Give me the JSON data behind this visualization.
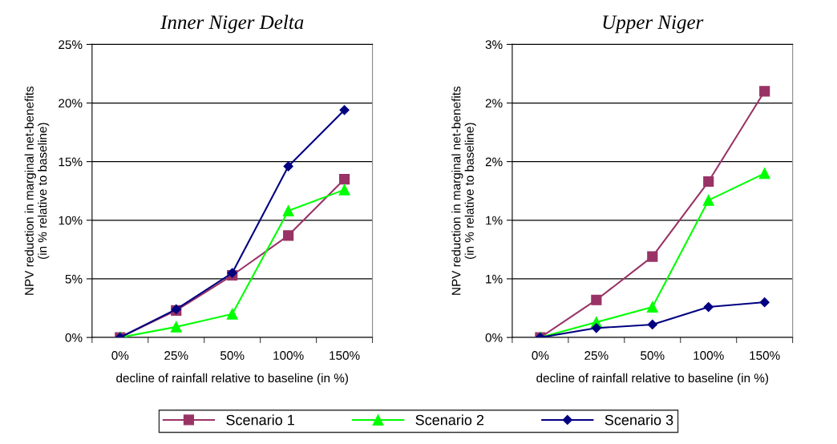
{
  "chart_data": [
    {
      "type": "line",
      "title": "Inner Niger Delta",
      "xlabel": "decline of rainfall relative to baseline (in %)",
      "ylabel": "NPV reduction in marginal net-benefits\n(in % relative to baseline)",
      "categories": [
        "0%",
        "25%",
        "50%",
        "100%",
        "150%"
      ],
      "ylim": [
        0,
        25
      ],
      "yticks": [
        {
          "value": 0,
          "label": "0%"
        },
        {
          "value": 5,
          "label": "5%"
        },
        {
          "value": 10,
          "label": "10%"
        },
        {
          "value": 15,
          "label": "15%"
        },
        {
          "value": 20,
          "label": "20%"
        },
        {
          "value": 25,
          "label": "25%"
        }
      ],
      "grid": "y",
      "legend": "bottom",
      "series": [
        {
          "name": "Scenario 1",
          "color": "#993366",
          "marker": "square",
          "values": [
            0,
            2.3,
            5.3,
            8.7,
            13.5
          ]
        },
        {
          "name": "Scenario 2",
          "color": "#00ff00",
          "marker": "triangle",
          "values": [
            0,
            0.9,
            2.0,
            10.8,
            12.6
          ]
        },
        {
          "name": "Scenario 3",
          "color": "#000080",
          "marker": "diamond",
          "values": [
            0,
            2.4,
            5.5,
            14.6,
            19.4
          ]
        }
      ]
    },
    {
      "type": "line",
      "title": "Upper Niger",
      "xlabel": "decline of rainfall relative to baseline (in %)",
      "ylabel": "NPV reduction in marginal net-benefits\n(in % relative to baseline)",
      "categories": [
        "0%",
        "25%",
        "50%",
        "100%",
        "150%"
      ],
      "ylim": [
        0,
        2.5
      ],
      "yticks": [
        {
          "value": 0,
          "label": "0%"
        },
        {
          "value": 0.5,
          "label": "1%"
        },
        {
          "value": 1,
          "label": "1%"
        },
        {
          "value": 1.5,
          "label": "2%"
        },
        {
          "value": 2,
          "label": "2%"
        },
        {
          "value": 2.5,
          "label": "3%"
        }
      ],
      "grid": "y",
      "series": [
        {
          "name": "Scenario 1",
          "color": "#993366",
          "marker": "square",
          "values": [
            0,
            0.32,
            0.69,
            1.33,
            2.1
          ]
        },
        {
          "name": "Scenario 2",
          "color": "#00ff00",
          "marker": "triangle",
          "values": [
            0,
            0.13,
            0.26,
            1.17,
            1.4
          ]
        },
        {
          "name": "Scenario 3",
          "color": "#000080",
          "marker": "diamond",
          "values": [
            0,
            0.08,
            0.11,
            0.26,
            0.3
          ]
        }
      ]
    }
  ]
}
